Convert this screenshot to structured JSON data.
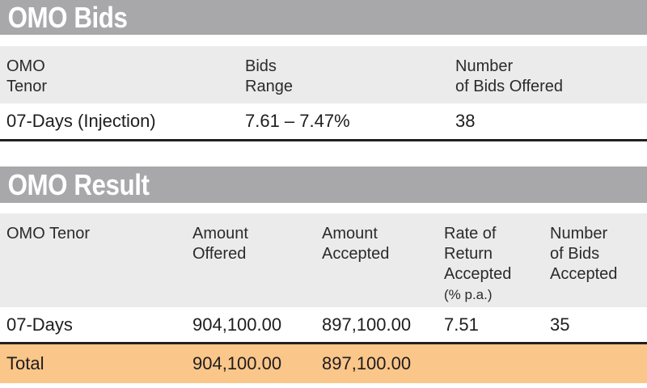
{
  "palette": {
    "bar_gray": "#a8a8aa",
    "header_row_gray": "#ebebec",
    "total_row_orange": "#fac689",
    "rule_black": "#231f20",
    "title_text": "#ffffff"
  },
  "bids_section": {
    "title": "OMO Bids",
    "headers": [
      {
        "main": "OMO\nTenor",
        "sub": ""
      },
      {
        "main": "Bids\nRange",
        "sub": ""
      },
      {
        "main": "Number\nof Bids Offered",
        "sub": ""
      }
    ],
    "row": {
      "tenor": "07-Days (Injection)",
      "bids_range": "7.61 – 7.47%",
      "bids_offered": "38"
    }
  },
  "result_section": {
    "title": "OMO Result",
    "headers": [
      {
        "main": "OMO Tenor",
        "sub": ""
      },
      {
        "main": "Amount\nOffered",
        "sub": ""
      },
      {
        "main": "Amount\nAccepted",
        "sub": ""
      },
      {
        "main": "Rate of\nReturn\nAccepted",
        "sub": "(% p.a.)"
      },
      {
        "main": "Number\nof Bids\nAccepted",
        "sub": ""
      }
    ],
    "row": {
      "tenor": "07-Days",
      "amount_offered": "904,100.00",
      "amount_accepted": "897,100.00",
      "rate": "7.51",
      "bids_accepted": "35"
    },
    "total": {
      "label": "Total",
      "amount_offered": "904,100.00",
      "amount_accepted": "897,100.00"
    }
  },
  "chart_data": [
    {
      "type": "table",
      "title": "OMO Bids",
      "columns": [
        "OMO Tenor",
        "Bids Range",
        "Number of Bids Offered"
      ],
      "rows": [
        [
          "07-Days (Injection)",
          "7.61 – 7.47%",
          38
        ]
      ]
    },
    {
      "type": "table",
      "title": "OMO Result",
      "columns": [
        "OMO Tenor",
        "Amount Offered",
        "Amount Accepted",
        "Rate of Return Accepted (% p.a.)",
        "Number of Bids Accepted"
      ],
      "rows": [
        [
          "07-Days",
          "904,100.00",
          "897,100.00",
          7.51,
          35
        ],
        [
          "Total",
          "904,100.00",
          "897,100.00",
          null,
          null
        ]
      ]
    }
  ]
}
